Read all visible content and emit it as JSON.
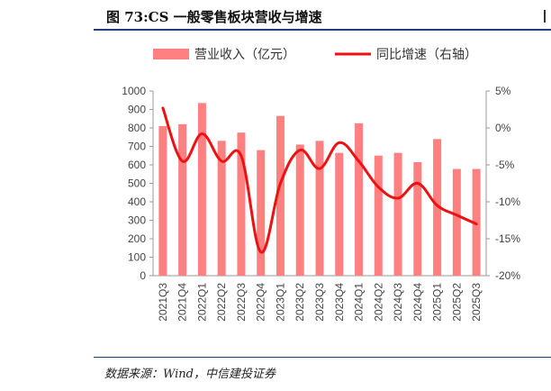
{
  "figure": {
    "title": "图 73:CS 一般零售板块营收与增速",
    "source": "数据来源：Wind，中信建投证券"
  },
  "colors": {
    "bar": "#ff8080",
    "line": "#ee1111",
    "rule": "#1f3d7a"
  },
  "chart_data": {
    "type": "bar+line",
    "categories": [
      "2021Q3",
      "2021Q4",
      "2022Q1",
      "2022Q2",
      "2022Q3",
      "2022Q4",
      "2023Q1",
      "2023Q2",
      "2023Q3",
      "2023Q4",
      "2024Q1",
      "2024Q2",
      "2024Q3",
      "2024Q4",
      "2025Q1",
      "2025Q2",
      "2025Q3"
    ],
    "series": [
      {
        "name": "营业收入（亿元）",
        "type": "bar",
        "axis": "left",
        "values": [
          810,
          820,
          935,
          730,
          775,
          680,
          865,
          710,
          730,
          665,
          825,
          650,
          665,
          615,
          740,
          578,
          578
        ]
      },
      {
        "name": "同比增速（右轴）",
        "type": "line",
        "axis": "right",
        "values": [
          2.7,
          -4.5,
          -0.8,
          -4.5,
          -3.8,
          -16.8,
          -7.5,
          -3.0,
          -5.5,
          -2.0,
          -4.5,
          -8.0,
          -9.5,
          -7.5,
          -10.5,
          -11.8,
          -13.0
        ]
      }
    ],
    "left_axis": {
      "ylim": [
        0,
        1000
      ],
      "ticks": [
        "0",
        "100",
        "200",
        "300",
        "400",
        "500",
        "600",
        "700",
        "800",
        "900",
        "1000"
      ]
    },
    "right_axis": {
      "ylim": [
        -20,
        5
      ],
      "ticks": [
        "-20%",
        "-15%",
        "-10%",
        "-5%",
        "0%",
        "5%"
      ]
    },
    "legend_position": "top",
    "grid": false
  }
}
